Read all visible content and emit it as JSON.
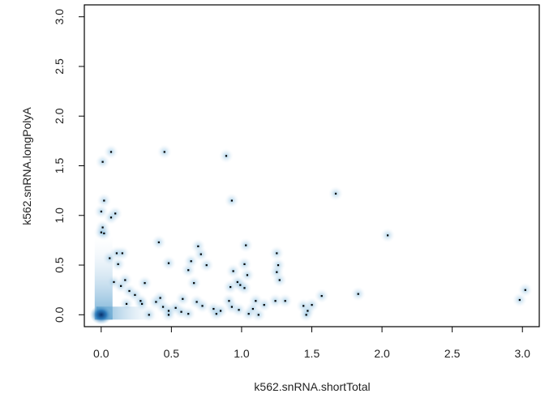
{
  "chart_data": {
    "type": "scatter",
    "title": "",
    "xlabel": "k562.snRNA.shortTotal",
    "ylabel": "k562.snRNA.longPolyA",
    "xlim": [
      -0.12,
      3.12
    ],
    "ylim": [
      -0.12,
      3.12
    ],
    "x_ticks": [
      0.0,
      0.5,
      1.0,
      1.5,
      2.0,
      2.5,
      3.0
    ],
    "x_tick_labels": [
      "0.0",
      "0.5",
      "1.0",
      "1.5",
      "2.0",
      "2.5",
      "3.0"
    ],
    "y_ticks": [
      0.0,
      0.5,
      1.0,
      1.5,
      2.0,
      2.5,
      3.0
    ],
    "y_tick_labels": [
      "0.0",
      "0.5",
      "1.0",
      "1.5",
      "2.0",
      "2.5",
      "3.0"
    ],
    "style": "smoothScatter",
    "colors": {
      "density_high": "#08306b",
      "density_mid": "#2171b5",
      "density_low": "#c6dbef",
      "point": "#000000",
      "axis": "#000000"
    },
    "dense_cluster": {
      "x_range": [
        0.0,
        0.35
      ],
      "y_range": [
        0.0,
        0.8
      ]
    },
    "points": [
      [
        0.07,
        1.64
      ],
      [
        0.45,
        1.64
      ],
      [
        0.89,
        1.6
      ],
      [
        0.01,
        1.54
      ],
      [
        0.02,
        1.15
      ],
      [
        0.93,
        1.15
      ],
      [
        1.67,
        1.22
      ],
      [
        0.0,
        1.04
      ],
      [
        0.1,
        1.02
      ],
      [
        0.07,
        0.98
      ],
      [
        0.01,
        0.88
      ],
      [
        0.0,
        0.83
      ],
      [
        0.02,
        0.82
      ],
      [
        2.04,
        0.8
      ],
      [
        0.41,
        0.73
      ],
      [
        0.69,
        0.69
      ],
      [
        1.03,
        0.7
      ],
      [
        0.15,
        0.62
      ],
      [
        0.71,
        0.61
      ],
      [
        1.25,
        0.62
      ],
      [
        0.06,
        0.57
      ],
      [
        0.64,
        0.54
      ],
      [
        0.12,
        0.51
      ],
      [
        0.48,
        0.52
      ],
      [
        0.75,
        0.5
      ],
      [
        1.02,
        0.51
      ],
      [
        1.26,
        0.5
      ],
      [
        0.62,
        0.45
      ],
      [
        0.94,
        0.44
      ],
      [
        1.04,
        0.4
      ],
      [
        1.25,
        0.43
      ],
      [
        0.09,
        0.33
      ],
      [
        0.17,
        0.35
      ],
      [
        0.31,
        0.32
      ],
      [
        0.66,
        0.32
      ],
      [
        0.97,
        0.33
      ],
      [
        1.27,
        0.35
      ],
      [
        0.14,
        0.29
      ],
      [
        0.92,
        0.28
      ],
      [
        0.99,
        0.3
      ],
      [
        1.02,
        0.27
      ],
      [
        0.2,
        0.24
      ],
      [
        0.24,
        0.2
      ],
      [
        1.57,
        0.19
      ],
      [
        1.83,
        0.21
      ],
      [
        3.02,
        0.25
      ],
      [
        0.42,
        0.17
      ],
      [
        0.58,
        0.16
      ],
      [
        0.28,
        0.14
      ],
      [
        0.39,
        0.13
      ],
      [
        0.68,
        0.13
      ],
      [
        0.91,
        0.14
      ],
      [
        1.1,
        0.14
      ],
      [
        1.24,
        0.14
      ],
      [
        1.31,
        0.14
      ],
      [
        2.98,
        0.15
      ],
      [
        0.18,
        0.11
      ],
      [
        0.44,
        0.08
      ],
      [
        0.53,
        0.07
      ],
      [
        0.72,
        0.09
      ],
      [
        0.8,
        0.06
      ],
      [
        0.93,
        0.08
      ],
      [
        1.16,
        0.1
      ],
      [
        1.44,
        0.09
      ],
      [
        1.5,
        0.1
      ],
      [
        0.48,
        0.04
      ],
      [
        0.57,
        0.03
      ],
      [
        0.85,
        0.04
      ],
      [
        0.98,
        0.05
      ],
      [
        1.08,
        0.06
      ],
      [
        1.47,
        0.04
      ],
      [
        0.34,
        0.0
      ],
      [
        0.48,
        0.0
      ],
      [
        0.62,
        0.01
      ],
      [
        0.82,
        0.01
      ],
      [
        1.05,
        0.01
      ],
      [
        1.12,
        0.0
      ],
      [
        1.46,
        0.0
      ],
      [
        0.29,
        0.11
      ],
      [
        0.11,
        0.62
      ]
    ]
  }
}
